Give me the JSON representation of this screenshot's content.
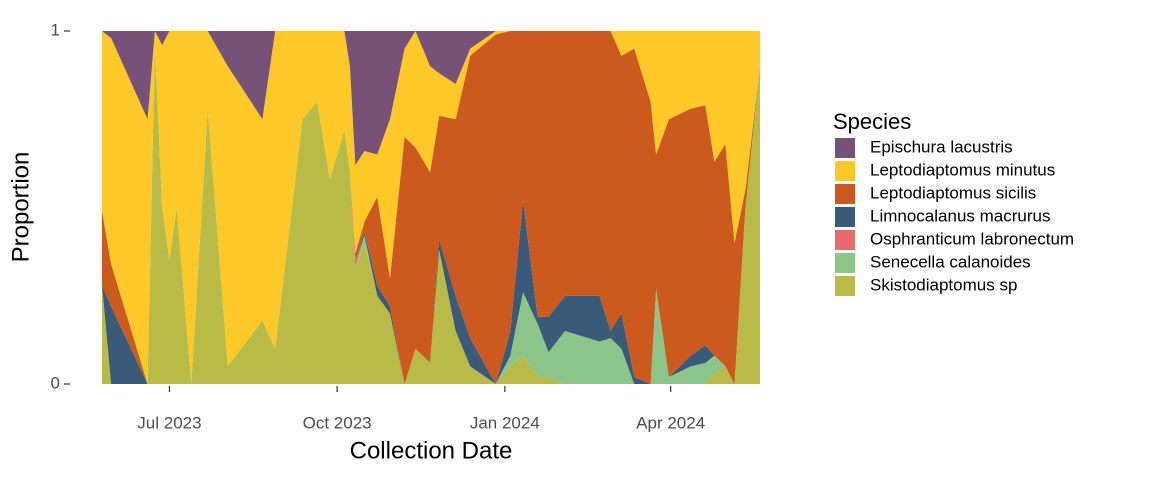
{
  "chart_data": {
    "type": "stacked_area",
    "x_label": "Collection Date",
    "y_label": "Proportion",
    "legend_title": "Species",
    "legend_position": "right",
    "x": [
      "2023-05-25",
      "2023-05-30",
      "2023-06-19",
      "2023-06-23",
      "2023-06-27",
      "2023-07-01",
      "2023-07-05",
      "2023-07-13",
      "2023-07-22",
      "2023-08-02",
      "2023-08-21",
      "2023-08-28",
      "2023-09-12",
      "2023-09-20",
      "2023-09-27",
      "2023-10-05",
      "2023-10-08",
      "2023-10-11",
      "2023-10-16",
      "2023-10-23",
      "2023-10-30",
      "2023-11-07",
      "2023-11-13",
      "2023-11-21",
      "2023-11-26",
      "2023-12-05",
      "2023-12-13",
      "2023-12-27",
      "2024-01-04",
      "2024-01-11",
      "2024-01-19",
      "2024-01-25",
      "2024-02-03",
      "2024-02-22",
      "2024-02-28",
      "2024-03-05",
      "2024-03-12",
      "2024-03-21",
      "2024-03-24",
      "2024-03-31",
      "2024-04-12",
      "2024-04-20",
      "2024-04-25",
      "2024-05-01",
      "2024-05-06",
      "2024-05-12",
      "2024-05-20"
    ],
    "xlim": [
      "2023-05-25",
      "2024-05-20"
    ],
    "xticks": [
      {
        "value": "2023-07-01",
        "label": "Jul 2023"
      },
      {
        "value": "2023-10-01",
        "label": "Oct 2023"
      },
      {
        "value": "2024-01-01",
        "label": "Jan 2024"
      },
      {
        "value": "2024-04-01",
        "label": "Apr 2024"
      }
    ],
    "ylim": [
      0,
      1
    ],
    "yticks": [
      0,
      1
    ],
    "series": [
      {
        "name": "Epischura lacustris",
        "color": "#765178",
        "values": [
          0,
          0.02,
          0.25,
          0,
          0.04,
          0,
          0,
          0,
          0,
          0.1,
          0.25,
          0,
          0,
          0,
          0,
          0,
          0.1,
          0.38,
          0.34,
          0.35,
          0.25,
          0.05,
          0,
          0.1,
          0.12,
          0.15,
          0.05,
          0,
          0,
          0,
          0,
          0,
          0,
          0,
          0,
          0,
          0,
          0,
          0,
          0,
          0,
          0,
          0,
          0,
          0,
          0,
          0
        ]
      },
      {
        "name": "Leptodiaptomus minutus",
        "color": "#fdc828",
        "values": [
          0.51,
          0.64,
          0.75,
          0.04,
          0.46,
          0.65,
          0.5,
          1,
          0.22,
          0.85,
          0.57,
          0.9,
          0.25,
          0.2,
          0.42,
          0.28,
          0.3,
          0.25,
          0.2,
          0.12,
          0.45,
          0.25,
          0.33,
          0.3,
          0.12,
          0.1,
          0.02,
          0.01,
          0,
          0,
          0,
          0,
          0,
          0,
          0,
          0.07,
          0.05,
          0.2,
          0.35,
          0.25,
          0.22,
          0.21,
          0.37,
          0.32,
          0.6,
          0.45,
          0.1
        ]
      },
      {
        "name": "Leptodiaptomus sicilis",
        "color": "#cc5a1f",
        "values": [
          0.21,
          0.12,
          0,
          0,
          0,
          0,
          0,
          0,
          0,
          0,
          0,
          0,
          0,
          0,
          0,
          0,
          0,
          0.02,
          0.03,
          0.25,
          0.08,
          0.7,
          0.57,
          0.54,
          0.35,
          0.5,
          0.8,
          0.99,
          0.85,
          0.48,
          0.81,
          0.81,
          0.75,
          0.75,
          0.85,
          0.73,
          0.93,
          0.8,
          0.38,
          0.73,
          0.7,
          0.68,
          0.55,
          0.63,
          0.4,
          0.05,
          0
        ]
      },
      {
        "name": "Limnocalanus macrurus",
        "color": "#3a5a7a",
        "values": [
          0,
          0.22,
          0,
          0,
          0,
          0,
          0,
          0,
          0,
          0,
          0,
          0,
          0,
          0,
          0,
          0,
          0,
          0,
          0.01,
          0.03,
          0.02,
          0,
          0,
          0,
          0.03,
          0.1,
          0.08,
          0,
          0.07,
          0.26,
          0.02,
          0.1,
          0.1,
          0.13,
          0.02,
          0.1,
          0.02,
          0,
          0,
          0,
          0.03,
          0.05,
          0,
          0,
          0,
          0,
          0
        ]
      },
      {
        "name": "Osphranticum labronectum",
        "color": "#e8696b",
        "values": [
          0,
          0,
          0,
          0,
          0,
          0,
          0,
          0,
          0,
          0,
          0,
          0,
          0,
          0,
          0,
          0,
          0,
          0.02,
          0,
          0,
          0,
          0,
          0,
          0,
          0,
          0,
          0,
          0,
          0,
          0,
          0,
          0,
          0,
          0,
          0,
          0,
          0,
          0,
          0,
          0,
          0,
          0,
          0,
          0,
          0,
          0,
          0
        ]
      },
      {
        "name": "Senecella calanoides",
        "color": "#8cc58a",
        "values": [
          0,
          0,
          0,
          0,
          0,
          0,
          0,
          0,
          0,
          0,
          0,
          0,
          0,
          0,
          0,
          0,
          0,
          0,
          0.02,
          0,
          0,
          0,
          0,
          0,
          0,
          0,
          0,
          0,
          0.03,
          0.18,
          0.15,
          0.07,
          0.15,
          0.12,
          0.13,
          0.1,
          0,
          0,
          0.27,
          0.02,
          0.05,
          0.06,
          0.05,
          0,
          0,
          0,
          0
        ]
      },
      {
        "name": "Skistodiaptomus sp",
        "color": "#b8bb48",
        "values": [
          0.28,
          0,
          0,
          0.96,
          0.5,
          0.35,
          0.5,
          0,
          0.78,
          0.05,
          0.18,
          0.1,
          0.75,
          0.8,
          0.58,
          0.72,
          0.6,
          0.33,
          0.4,
          0.25,
          0.2,
          0,
          0.1,
          0.06,
          0.38,
          0.15,
          0.05,
          0,
          0.05,
          0.08,
          0.02,
          0.02,
          0,
          0,
          0,
          0,
          0,
          0,
          0,
          0,
          0,
          0,
          0.03,
          0.05,
          0,
          0.5,
          0.9
        ]
      }
    ]
  }
}
